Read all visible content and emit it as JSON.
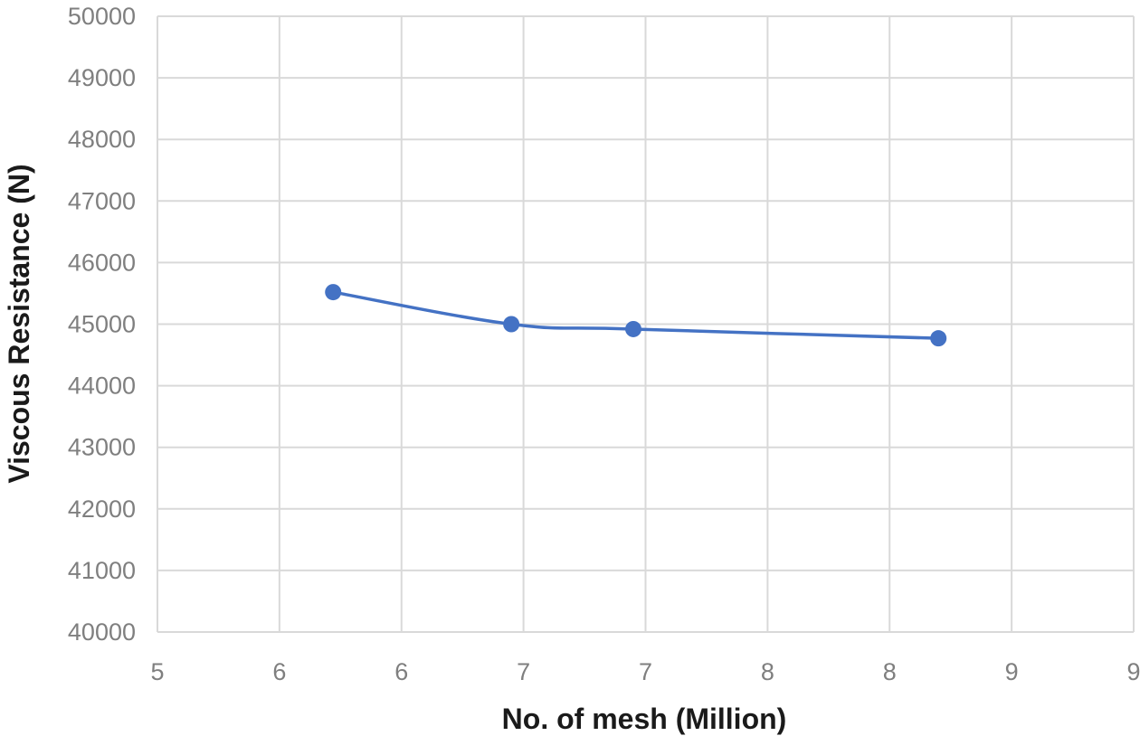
{
  "chart_data": {
    "type": "line",
    "xlabel": "No. of mesh (Million)",
    "ylabel": "Viscous Resistance (N)",
    "x_tick_labels": [
      "5",
      "6",
      "6",
      "7",
      "7",
      "8",
      "8",
      "9",
      "9"
    ],
    "y_tick_labels": [
      "40000",
      "41000",
      "42000",
      "43000",
      "44000",
      "45000",
      "46000",
      "47000",
      "48000",
      "49000",
      "50000"
    ],
    "xlim": [
      5,
      9
    ],
    "ylim": [
      40000,
      50000
    ],
    "grid": true,
    "legend": false,
    "series": [
      {
        "color": "#4472c4",
        "marker": "circle",
        "x": [
          5.72,
          6.45,
          6.95,
          8.2
        ],
        "y": [
          45520,
          45000,
          44920,
          44770
        ]
      }
    ]
  }
}
